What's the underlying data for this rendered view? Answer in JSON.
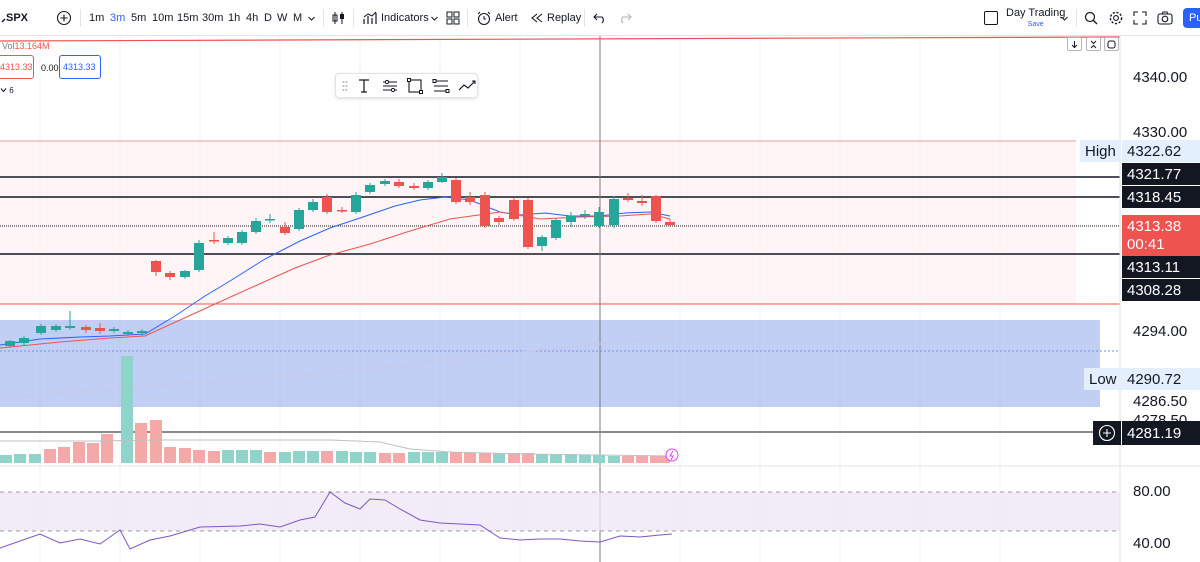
{
  "header": {
    "symbol": "SPX",
    "intervals": [
      "1m",
      "3m",
      "5m",
      "10m",
      "15m",
      "30m",
      "1h",
      "4h",
      "D",
      "W",
      "M"
    ],
    "active_interval": "3m",
    "indicators_label": "Indicators",
    "alert_label": "Alert",
    "replay_label": "Replay",
    "layout_name": "Day Trading",
    "layout_status": "Save",
    "publish_label": "Pu"
  },
  "legend": {
    "vol_label": "Vol",
    "vol_value": "13.164M",
    "bid": "4313.33",
    "spread": "0.00",
    "ask": "4313.33",
    "indicator_count": "6"
  },
  "price_axis": {
    "ticks": [
      "4340.00",
      "4330.00",
      "4294.00",
      "4286.50",
      "4278.50",
      "80.00",
      "40.00"
    ],
    "high_label": "High",
    "high_value": "4322.62",
    "low_label": "Low",
    "low_value": "4290.72",
    "levels": [
      "4321.77",
      "4318.45",
      "4313.11",
      "4308.28",
      "4281.19"
    ],
    "last_price": "4313.38",
    "countdown": "00:41"
  },
  "colors": {
    "up": "#26a69a",
    "down": "#ef5350",
    "ema_fast": "#2962ff",
    "ema_slow": "#ef5350",
    "zone": "#8fa8ec",
    "rsi_band": "#ede7f6",
    "rsi_line": "#7e57c2"
  },
  "icons": {
    "add_symbol": "plus-circle-icon",
    "bar_style": "candles-icon",
    "indicators": "indicators-icon",
    "templates": "templates-grid-icon",
    "alert": "alarm-clock-icon",
    "replay": "rewind-icon",
    "undo": "undo-icon",
    "redo": "redo-icon",
    "search": "search-icon",
    "settings": "gear-icon",
    "fullscreen": "fullscreen-icon",
    "snapshot": "camera-icon",
    "crosshair_add": "plus-circle-icon"
  }
}
